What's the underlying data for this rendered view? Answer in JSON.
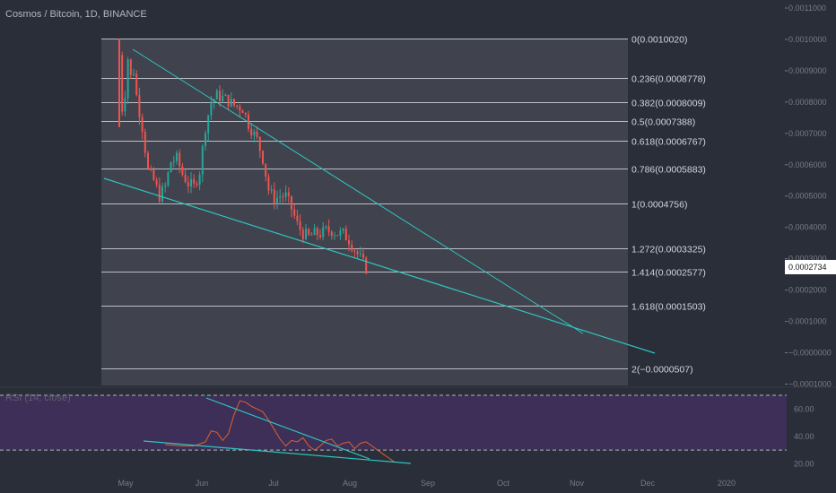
{
  "header": {
    "title": "Cosmos / Bitcoin, 1D, BINANCE"
  },
  "rsi": {
    "title": "RSI (14, close)",
    "y_ticks": [
      "60.00",
      "40.00",
      "20.00"
    ]
  },
  "price_axis": {
    "ticks": [
      "0.0011000",
      "0.0010000",
      "0.0009000",
      "0.0008000",
      "0.0007000",
      "0.0006000",
      "0.0005000",
      "0.0004000",
      "0.0003000",
      "0.0002000",
      "0.0001000",
      "−0.0000000",
      "−0.0001000"
    ],
    "last_price": "0.0002734",
    "last_price_color": "#ef5350"
  },
  "x_axis": {
    "ticks": [
      "May",
      "Jun",
      "Jul",
      "Aug",
      "Sep",
      "Oct",
      "Nov",
      "Dec",
      "2020"
    ]
  },
  "colors": {
    "background": "#2a2e39",
    "fib_zone": "#40434d",
    "rsi_band": "#3d2f57",
    "up": "#26a69a",
    "down": "#ef5350",
    "trendline": "#2ec4c0",
    "rsi_line": "#e0612e"
  },
  "chart_data": {
    "type": "candlestick",
    "title": "Cosmos / Bitcoin, 1D, BINANCE",
    "ylim": [
      -0.00011,
      0.00112
    ],
    "fib_levels": [
      {
        "label": "0(0.0010020)",
        "value": 0.001002
      },
      {
        "label": "0.236(0.0008778)",
        "value": 0.0008778
      },
      {
        "label": "0.382(0.0008009)",
        "value": 0.0008009
      },
      {
        "label": "0.5(0.0007388)",
        "value": 0.0007388
      },
      {
        "label": "0.618(0.0006767)",
        "value": 0.0006767
      },
      {
        "label": "0.786(0.0005883)",
        "value": 0.0005883
      },
      {
        "label": "1(0.0004756)",
        "value": 0.0004756
      },
      {
        "label": "1.272(0.0003325)",
        "value": 0.0003325
      },
      {
        "label": "1.414(0.0002577)",
        "value": 0.0002577
      },
      {
        "label": "1.618(0.0001503)",
        "value": 0.0001503
      },
      {
        "label": "2(−0.0000507)",
        "value": -5.07e-05
      }
    ],
    "price_path": [
      [
        0,
        0.00095
      ],
      [
        1,
        0.00078
      ],
      [
        2,
        0.00083
      ],
      [
        3,
        0.00094
      ],
      [
        4,
        0.00088
      ],
      [
        5,
        0.0009
      ],
      [
        6,
        0.00082
      ],
      [
        8,
        0.00072
      ],
      [
        10,
        0.00058
      ],
      [
        12,
        0.00055
      ],
      [
        14,
        0.0005
      ],
      [
        16,
        0.00053
      ],
      [
        18,
        0.00061
      ],
      [
        20,
        0.00062
      ],
      [
        22,
        0.00057
      ],
      [
        24,
        0.00054
      ],
      [
        26,
        0.00053
      ],
      [
        28,
        0.00058
      ],
      [
        30,
        0.00072
      ],
      [
        32,
        0.0008
      ],
      [
        34,
        0.00082
      ],
      [
        37,
        0.00081
      ],
      [
        40,
        0.00079
      ],
      [
        43,
        0.00078
      ],
      [
        45,
        0.00073
      ],
      [
        48,
        0.00068
      ],
      [
        50,
        0.00062
      ],
      [
        52,
        0.00052
      ],
      [
        54,
        0.00049
      ],
      [
        56,
        0.0005
      ],
      [
        58,
        0.0005
      ],
      [
        60,
        0.00046
      ],
      [
        62,
        0.00041
      ],
      [
        64,
        0.00038
      ],
      [
        66,
        0.00037
      ],
      [
        68,
        0.00038
      ],
      [
        70,
        0.00038
      ],
      [
        72,
        0.00039
      ],
      [
        74,
        0.00039
      ],
      [
        76,
        0.00038
      ],
      [
        78,
        0.00038
      ],
      [
        80,
        0.00036
      ],
      [
        82,
        0.00033
      ],
      [
        84,
        0.0003
      ],
      [
        86,
        0.00027
      ]
    ],
    "rsi_ylim": [
      15,
      72
    ],
    "rsi_values": [
      [
        0,
        34
      ],
      [
        6,
        33
      ],
      [
        10,
        33
      ],
      [
        14,
        36
      ],
      [
        16,
        44
      ],
      [
        18,
        43
      ],
      [
        20,
        37
      ],
      [
        22,
        42
      ],
      [
        24,
        56
      ],
      [
        26,
        66
      ],
      [
        28,
        65
      ],
      [
        30,
        62
      ],
      [
        32,
        60
      ],
      [
        34,
        58
      ],
      [
        36,
        52
      ],
      [
        38,
        45
      ],
      [
        40,
        38
      ],
      [
        42,
        33
      ],
      [
        44,
        37
      ],
      [
        46,
        36
      ],
      [
        48,
        39
      ],
      [
        50,
        33
      ],
      [
        52,
        30
      ],
      [
        54,
        33
      ],
      [
        56,
        37
      ],
      [
        58,
        38
      ],
      [
        60,
        33
      ],
      [
        62,
        35
      ],
      [
        64,
        36
      ],
      [
        66,
        31
      ],
      [
        68,
        35
      ],
      [
        70,
        36
      ],
      [
        72,
        33
      ],
      [
        74,
        30
      ],
      [
        76,
        27
      ],
      [
        78,
        24
      ],
      [
        80,
        21
      ]
    ]
  }
}
